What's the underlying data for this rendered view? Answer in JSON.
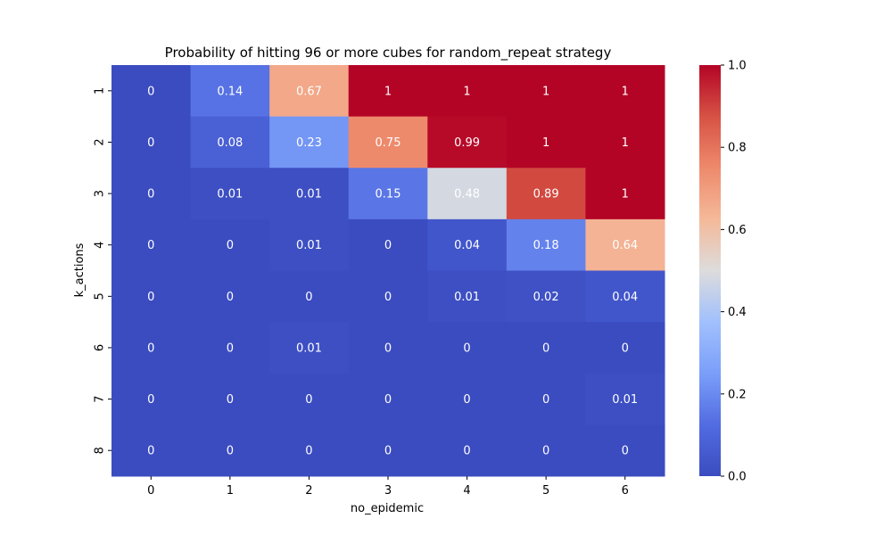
{
  "chart_data": {
    "type": "heatmap",
    "title": "Probability of hitting 96 or more cubes for random_repeat strategy",
    "xlabel": "no_epidemic",
    "ylabel": "k_actions",
    "x_categories": [
      "0",
      "1",
      "2",
      "3",
      "4",
      "5",
      "6"
    ],
    "y_categories": [
      "1",
      "2",
      "3",
      "4",
      "5",
      "6",
      "7",
      "8"
    ],
    "values": [
      [
        0,
        0.14,
        0.67,
        1,
        1,
        1,
        1
      ],
      [
        0,
        0.08,
        0.23,
        0.75,
        0.99,
        1,
        1
      ],
      [
        0,
        0.01,
        0.01,
        0.15,
        0.48,
        0.89,
        1
      ],
      [
        0,
        0,
        0.01,
        0,
        0.04,
        0.18,
        0.64
      ],
      [
        0,
        0,
        0,
        0,
        0.01,
        0.02,
        0.04
      ],
      [
        0,
        0,
        0.01,
        0,
        0,
        0,
        0
      ],
      [
        0,
        0,
        0,
        0,
        0,
        0,
        0.01
      ],
      [
        0,
        0,
        0,
        0,
        0,
        0,
        0
      ]
    ],
    "colorbar": {
      "colormap": "coolwarm",
      "range": [
        0,
        1
      ],
      "ticks": [
        "0.0",
        "0.2",
        "0.4",
        "0.6",
        "0.8",
        "1.0"
      ]
    }
  }
}
